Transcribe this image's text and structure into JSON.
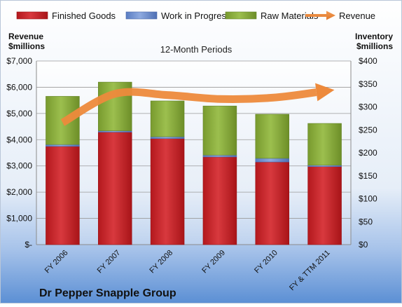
{
  "colors": {
    "finished_goods": "#c8262b",
    "work_in_progress": "#6f8fd0",
    "raw_materials": "#8fb340",
    "revenue": "#ed8a3c",
    "background_top": "#ffffff",
    "background_bottom": "#5b8fd4"
  },
  "chart_data": {
    "type": "bar",
    "stacked": true,
    "title": "12-Month Periods",
    "company": "Dr Pepper Snapple Group",
    "left_axis_label": [
      "Revenue",
      "$millions"
    ],
    "right_axis_label": [
      "Inventory",
      "$millions"
    ],
    "categories": [
      "FY 2006",
      "FY 2007",
      "FY 2008",
      "FY 2009",
      "FY 2010",
      "FY & TTM 2011"
    ],
    "left_axis": {
      "min": 0,
      "max": 7000,
      "ticks": [
        0,
        1000,
        2000,
        3000,
        4000,
        5000,
        6000,
        7000
      ],
      "tick_labels": [
        "$-",
        "$1,000",
        "$2,000",
        "$3,000",
        "$4,000",
        "$5,000",
        "$6,000",
        "$7,000"
      ]
    },
    "right_axis": {
      "min": 0,
      "max": 400,
      "ticks": [
        0,
        50,
        100,
        150,
        200,
        250,
        300,
        350,
        400
      ],
      "tick_labels": [
        "$0",
        "$50",
        "$100",
        "$150",
        "$200",
        "$250",
        "$300",
        "$350",
        "$400"
      ]
    },
    "grid": true,
    "legend_position": "top",
    "series": [
      {
        "name": "Finished Goods",
        "axis": "right",
        "kind": "bar",
        "color_key": "finished_goods",
        "values": [
          214,
          245,
          231,
          191,
          180,
          170
        ]
      },
      {
        "name": "Work in Progress",
        "axis": "right",
        "kind": "bar",
        "color_key": "work_in_progress",
        "values": [
          4,
          3,
          4,
          4,
          8,
          3
        ]
      },
      {
        "name": "Raw Materials",
        "axis": "right",
        "kind": "bar",
        "color_key": "raw_materials",
        "values": [
          105,
          106,
          78,
          107,
          96,
          91
        ]
      },
      {
        "name": "Revenue",
        "axis": "left",
        "kind": "line",
        "color_key": "revenue",
        "values": [
          4650,
          5750,
          5700,
          5550,
          5600,
          5850
        ]
      }
    ]
  }
}
